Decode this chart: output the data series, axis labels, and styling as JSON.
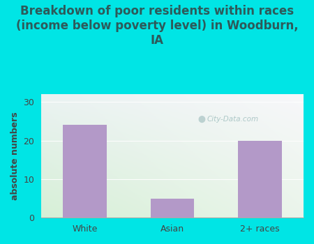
{
  "title": "Breakdown of poor residents within races\n(income below poverty level) in Woodburn,\nIA",
  "categories": [
    "White",
    "Asian",
    "2+ races"
  ],
  "values": [
    24,
    5,
    20
  ],
  "bar_color": "#b399c8",
  "ylabel": "absolute numbers",
  "ylim": [
    0,
    32
  ],
  "yticks": [
    0,
    10,
    20,
    30
  ],
  "background_color": "#00e5e5",
  "title_color": "#2d5a5a",
  "axis_color": "#444444",
  "watermark": "City-Data.com",
  "title_fontsize": 12,
  "ylabel_fontsize": 9,
  "tick_fontsize": 9,
  "bar_width": 0.5
}
